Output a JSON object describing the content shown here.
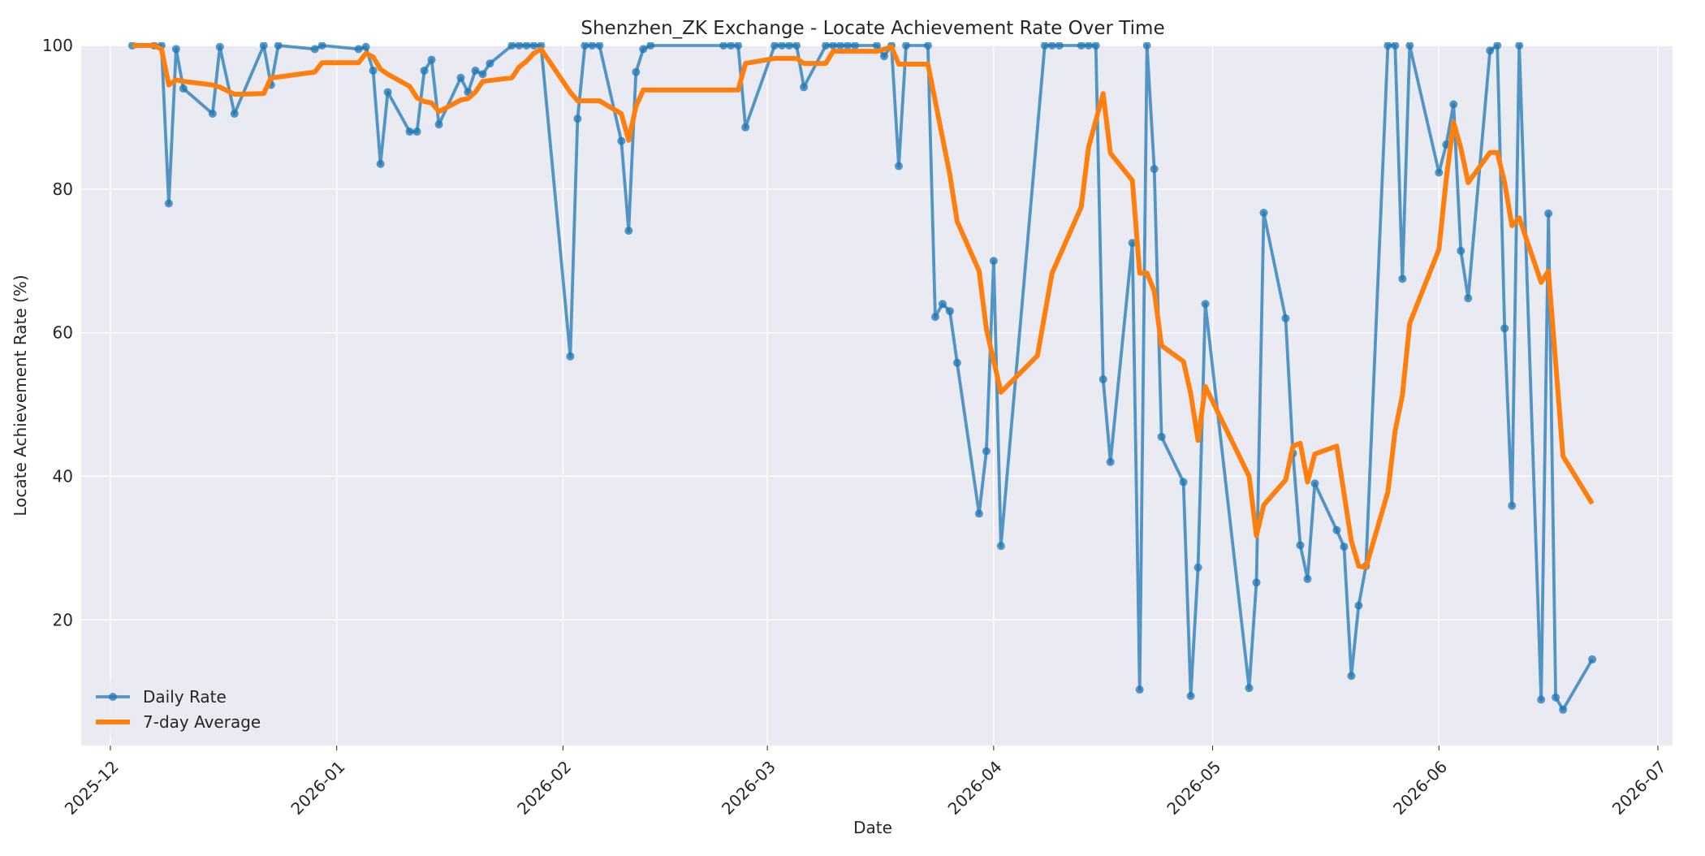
{
  "chart_data": {
    "type": "line",
    "title": "Shenzhen_ZK Exchange - Locate Achievement Rate Over Time",
    "xlabel": "Date",
    "ylabel": "Locate Achievement Rate (%)",
    "xlim": [
      "2025-11-27",
      "2026-07-03"
    ],
    "ylim": [
      2.5,
      100
    ],
    "x_ticks": [
      "2025-12",
      "2026-01",
      "2026-02",
      "2026-03",
      "2026-04",
      "2026-05",
      "2026-06",
      "2026-07"
    ],
    "y_ticks": [
      20,
      40,
      60,
      80,
      100
    ],
    "grid": true,
    "legend_position": "bottom-left",
    "colors": {
      "daily": "#1f77b4",
      "avg": "#ff7f0e",
      "plot_bg": "#eaeaf2",
      "grid": "#ffffff"
    },
    "series": [
      {
        "name": "Daily Rate",
        "marker": "circle",
        "points": [
          [
            "2025-12-04",
            100
          ],
          [
            "2025-12-07",
            100
          ],
          [
            "2025-12-08",
            100
          ],
          [
            "2025-12-09",
            78
          ],
          [
            "2025-12-10",
            99.5
          ],
          [
            "2025-12-11",
            94
          ],
          [
            "2025-12-15",
            90.5
          ],
          [
            "2025-12-16",
            99.8
          ],
          [
            "2025-12-18",
            90.5
          ],
          [
            "2025-12-22",
            100
          ],
          [
            "2025-12-23",
            94.5
          ],
          [
            "2025-12-24",
            100
          ],
          [
            "2025-12-29",
            99.5
          ],
          [
            "2025-12-30",
            100
          ],
          [
            "2026-01-04",
            99.5
          ],
          [
            "2026-01-05",
            99.8
          ],
          [
            "2026-01-06",
            96.5
          ],
          [
            "2026-01-07",
            83.5
          ],
          [
            "2026-01-08",
            93.5
          ],
          [
            "2026-01-11",
            88
          ],
          [
            "2026-01-12",
            88
          ],
          [
            "2026-01-13",
            96.5
          ],
          [
            "2026-01-14",
            98
          ],
          [
            "2026-01-15",
            89
          ],
          [
            "2026-01-18",
            95.5
          ],
          [
            "2026-01-19",
            93.5
          ],
          [
            "2026-01-20",
            96.5
          ],
          [
            "2026-01-21",
            96
          ],
          [
            "2026-01-22",
            97.5
          ],
          [
            "2026-01-25",
            100
          ],
          [
            "2026-01-26",
            100
          ],
          [
            "2026-01-27",
            100
          ],
          [
            "2026-01-28",
            100
          ],
          [
            "2026-01-29",
            100
          ],
          [
            "2026-02-02",
            56.7
          ],
          [
            "2026-02-03",
            89.8
          ],
          [
            "2026-02-04",
            100
          ],
          [
            "2026-02-05",
            100
          ],
          [
            "2026-02-06",
            100
          ],
          [
            "2026-02-09",
            86.7
          ],
          [
            "2026-02-10",
            74.2
          ],
          [
            "2026-02-11",
            96.3
          ],
          [
            "2026-02-12",
            99.5
          ],
          [
            "2026-02-13",
            100
          ],
          [
            "2026-02-23",
            100
          ],
          [
            "2026-02-24",
            100
          ],
          [
            "2026-02-25",
            100
          ],
          [
            "2026-02-26",
            88.6
          ],
          [
            "2026-03-02",
            100
          ],
          [
            "2026-03-03",
            100
          ],
          [
            "2026-03-04",
            100
          ],
          [
            "2026-03-05",
            100
          ],
          [
            "2026-03-06",
            94.2
          ],
          [
            "2026-03-09",
            100
          ],
          [
            "2026-03-10",
            100
          ],
          [
            "2026-03-11",
            100
          ],
          [
            "2026-03-12",
            100
          ],
          [
            "2026-03-13",
            100
          ],
          [
            "2026-03-16",
            100
          ],
          [
            "2026-03-17",
            98.5
          ],
          [
            "2026-03-18",
            100
          ],
          [
            "2026-03-19",
            83.2
          ],
          [
            "2026-03-20",
            100
          ],
          [
            "2026-03-23",
            100
          ],
          [
            "2026-03-24",
            62.2
          ],
          [
            "2026-03-25",
            64
          ],
          [
            "2026-03-26",
            63
          ],
          [
            "2026-03-27",
            55.8
          ],
          [
            "2026-03-30",
            34.8
          ],
          [
            "2026-03-31",
            43.5
          ],
          [
            "2026-04-01",
            70
          ],
          [
            "2026-04-02",
            30.3
          ],
          [
            "2026-04-08",
            100
          ],
          [
            "2026-04-09",
            100
          ],
          [
            "2026-04-10",
            100
          ],
          [
            "2026-04-13",
            100
          ],
          [
            "2026-04-14",
            100
          ],
          [
            "2026-04-15",
            100
          ],
          [
            "2026-04-16",
            53.5
          ],
          [
            "2026-04-17",
            42
          ],
          [
            "2026-04-20",
            72.5
          ],
          [
            "2026-04-21",
            10.3
          ],
          [
            "2026-04-22",
            100
          ],
          [
            "2026-04-23",
            82.8
          ],
          [
            "2026-04-24",
            45.5
          ],
          [
            "2026-04-27",
            39.2
          ],
          [
            "2026-04-28",
            9.4
          ],
          [
            "2026-04-29",
            27.3
          ],
          [
            "2026-04-30",
            64
          ],
          [
            "2026-05-06",
            10.5
          ],
          [
            "2026-05-07",
            25.2
          ],
          [
            "2026-05-08",
            76.7
          ],
          [
            "2026-05-11",
            62
          ],
          [
            "2026-05-12",
            43.2
          ],
          [
            "2026-05-13",
            30.4
          ],
          [
            "2026-05-14",
            25.7
          ],
          [
            "2026-05-15",
            39
          ],
          [
            "2026-05-18",
            32.5
          ],
          [
            "2026-05-19",
            30.2
          ],
          [
            "2026-05-20",
            12.2
          ],
          [
            "2026-05-21",
            22
          ],
          [
            "2026-05-22",
            27.5
          ],
          [
            "2026-05-25",
            100
          ],
          [
            "2026-05-26",
            100
          ],
          [
            "2026-05-27",
            67.5
          ],
          [
            "2026-05-28",
            100
          ],
          [
            "2026-06-01",
            82.3
          ],
          [
            "2026-06-02",
            86.2
          ],
          [
            "2026-06-03",
            91.8
          ],
          [
            "2026-06-04",
            71.4
          ],
          [
            "2026-06-05",
            64.8
          ],
          [
            "2026-06-08",
            99.3
          ],
          [
            "2026-06-09",
            100
          ],
          [
            "2026-06-10",
            60.6
          ],
          [
            "2026-06-11",
            35.9
          ],
          [
            "2026-06-12",
            100
          ],
          [
            "2026-06-15",
            8.9
          ],
          [
            "2026-06-16",
            76.6
          ],
          [
            "2026-06-17",
            9.2
          ],
          [
            "2026-06-18",
            7.5
          ],
          [
            "2026-06-22",
            14.5
          ]
        ]
      },
      {
        "name": "7-day Average",
        "marker": "none",
        "points": [
          [
            "2025-12-04",
            100
          ],
          [
            "2025-12-07",
            100
          ],
          [
            "2025-12-08",
            99.5
          ],
          [
            "2025-12-09",
            94.5
          ],
          [
            "2025-12-10",
            95.2
          ],
          [
            "2025-12-11",
            95
          ],
          [
            "2025-12-15",
            94.5
          ],
          [
            "2025-12-16",
            94.2
          ],
          [
            "2025-12-18",
            93.2
          ],
          [
            "2025-12-22",
            93.3
          ],
          [
            "2025-12-23",
            95.5
          ],
          [
            "2025-12-24",
            95.6
          ],
          [
            "2025-12-29",
            96.3
          ],
          [
            "2025-12-30",
            97.6
          ],
          [
            "2026-01-04",
            97.6
          ],
          [
            "2026-01-05",
            98.9
          ],
          [
            "2026-01-06",
            98.4
          ],
          [
            "2026-01-07",
            96.7
          ],
          [
            "2026-01-08",
            96
          ],
          [
            "2026-01-11",
            94.3
          ],
          [
            "2026-01-12",
            92.7
          ],
          [
            "2026-01-13",
            92.2
          ],
          [
            "2026-01-14",
            92
          ],
          [
            "2026-01-15",
            90.8
          ],
          [
            "2026-01-18",
            92.4
          ],
          [
            "2026-01-19",
            92.6
          ],
          [
            "2026-01-20",
            93.5
          ],
          [
            "2026-01-21",
            95
          ],
          [
            "2026-01-25",
            95.5
          ],
          [
            "2026-01-26",
            97
          ],
          [
            "2026-01-27",
            97.8
          ],
          [
            "2026-01-28",
            98.9
          ],
          [
            "2026-01-29",
            99.5
          ],
          [
            "2026-02-02",
            93.5
          ],
          [
            "2026-02-03",
            92.3
          ],
          [
            "2026-02-06",
            92.3
          ],
          [
            "2026-02-09",
            90.5
          ],
          [
            "2026-02-10",
            86.8
          ],
          [
            "2026-02-11",
            91.5
          ],
          [
            "2026-02-12",
            93.8
          ],
          [
            "2026-02-25",
            93.8
          ],
          [
            "2026-02-26",
            97.5
          ],
          [
            "2026-03-02",
            98.2
          ],
          [
            "2026-03-05",
            98.2
          ],
          [
            "2026-03-06",
            97.5
          ],
          [
            "2026-03-09",
            97.5
          ],
          [
            "2026-03-10",
            99.2
          ],
          [
            "2026-03-16",
            99.2
          ],
          [
            "2026-03-18",
            99.8
          ],
          [
            "2026-03-19",
            97.4
          ],
          [
            "2026-03-23",
            97.4
          ],
          [
            "2026-03-26",
            82
          ],
          [
            "2026-03-27",
            75.5
          ],
          [
            "2026-03-30",
            68.6
          ],
          [
            "2026-03-31",
            60.5
          ],
          [
            "2026-04-02",
            51.7
          ],
          [
            "2026-04-07",
            56.8
          ],
          [
            "2026-04-09",
            68.3
          ],
          [
            "2026-04-13",
            77.5
          ],
          [
            "2026-04-14",
            85.8
          ],
          [
            "2026-04-16",
            93.3
          ],
          [
            "2026-04-17",
            85
          ],
          [
            "2026-04-20",
            81.2
          ],
          [
            "2026-04-21",
            68.3
          ],
          [
            "2026-04-22",
            68.3
          ],
          [
            "2026-04-23",
            65.8
          ],
          [
            "2026-04-24",
            58.2
          ],
          [
            "2026-04-27",
            56
          ],
          [
            "2026-04-28",
            51.5
          ],
          [
            "2026-04-29",
            45
          ],
          [
            "2026-04-30",
            52.5
          ],
          [
            "2026-05-06",
            40
          ],
          [
            "2026-05-07",
            31.7
          ],
          [
            "2026-05-08",
            36
          ],
          [
            "2026-05-11",
            39.5
          ],
          [
            "2026-05-12",
            44.2
          ],
          [
            "2026-05-13",
            44.6
          ],
          [
            "2026-05-14",
            39.2
          ],
          [
            "2026-05-15",
            43.1
          ],
          [
            "2026-05-18",
            44.2
          ],
          [
            "2026-05-20",
            31
          ],
          [
            "2026-05-21",
            27.5
          ],
          [
            "2026-05-22",
            27.3
          ],
          [
            "2026-05-25",
            37.8
          ],
          [
            "2026-05-26",
            46.3
          ],
          [
            "2026-05-27",
            51.3
          ],
          [
            "2026-05-28",
            61.3
          ],
          [
            "2026-06-01",
            71.6
          ],
          [
            "2026-06-02",
            81.4
          ],
          [
            "2026-06-03",
            89.3
          ],
          [
            "2026-06-04",
            85.7
          ],
          [
            "2026-06-05",
            80.9
          ],
          [
            "2026-06-08",
            85.1
          ],
          [
            "2026-06-09",
            85.1
          ],
          [
            "2026-06-10",
            80.9
          ],
          [
            "2026-06-11",
            74.9
          ],
          [
            "2026-06-12",
            76
          ],
          [
            "2026-06-15",
            67
          ],
          [
            "2026-06-16",
            68.6
          ],
          [
            "2026-06-18",
            42.8
          ],
          [
            "2026-06-22",
            36.2
          ]
        ]
      }
    ]
  }
}
